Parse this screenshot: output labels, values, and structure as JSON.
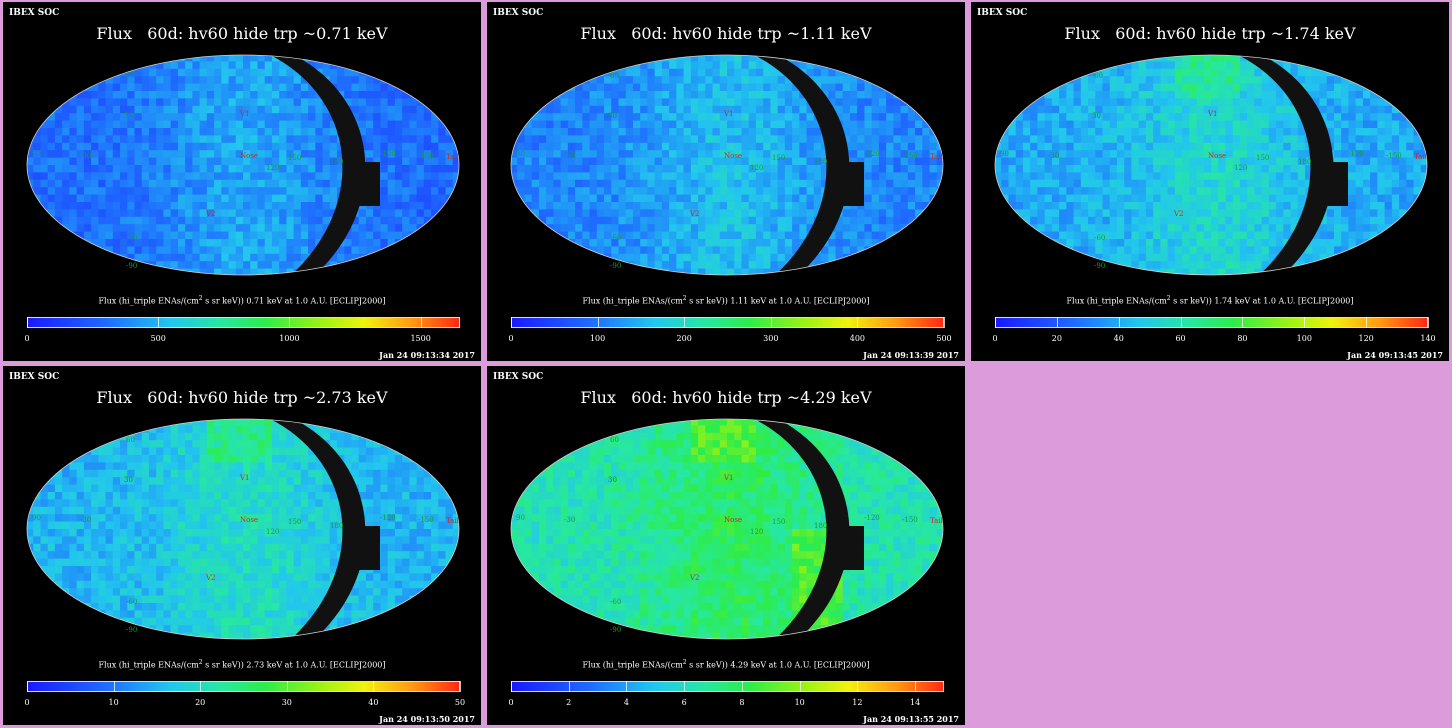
{
  "colors": {
    "page_background": "#dc9cdc",
    "panel_background": "#000000",
    "occulted_band": "#111111",
    "marker_label": "#cc2a1a",
    "grid_label": "#18a020"
  },
  "panels": [
    {
      "soc_label": "IBEX SOC",
      "title": "Flux   60d: hv60 hide trp ~0.71 keV",
      "colorbar_prefix": "Flux (hi_triple ENAs/(cm",
      "colorbar_sup": "2",
      "colorbar_suffix": " s sr keV))  0.71 keV at 1.0 A.U. [ECLIPJ2000]",
      "timestamp": "Jan 24 09:13:34 2017",
      "scale_max": 1650,
      "ticks": [
        "0",
        "500",
        "1000",
        "1500"
      ],
      "tick_values": [
        0,
        500,
        1000,
        1500
      ],
      "map_mean_level": 0.18,
      "map_labels": [
        "V1",
        "V2",
        "Nose",
        "Tail",
        "90",
        "60",
        "30",
        "-60",
        "-90",
        "-30",
        "120",
        "150",
        "180",
        "-150",
        "-120",
        "30"
      ]
    },
    {
      "soc_label": "IBEX SOC",
      "title": "Flux   60d: hv60 hide trp ~1.11 keV",
      "colorbar_prefix": "Flux (hi_triple ENAs/(cm",
      "colorbar_sup": "2",
      "colorbar_suffix": " s sr keV))  1.11 keV at 1.0 A.U. [ECLIPJ2000]",
      "timestamp": "Jan 24 09:13:39 2017",
      "scale_max": 500,
      "ticks": [
        "0",
        "100",
        "200",
        "300",
        "400",
        "500"
      ],
      "tick_values": [
        0,
        100,
        200,
        300,
        400,
        500
      ],
      "map_mean_level": 0.22,
      "map_labels": [
        "V1",
        "V2",
        "Nose",
        "Tail",
        "90",
        "60",
        "30",
        "-60",
        "-90",
        "-30",
        "120",
        "150",
        "180",
        "-150",
        "-120",
        "30"
      ]
    },
    {
      "soc_label": "IBEX SOC",
      "title": "Flux   60d: hv60 hide trp ~1.74 keV",
      "colorbar_prefix": "Flux (hi_triple ENAs/(cm",
      "colorbar_sup": "2",
      "colorbar_suffix": " s sr keV))  1.74 keV at 1.0 A.U. [ECLIPJ2000]",
      "timestamp": "Jan 24 09:13:45 2017",
      "scale_max": 140,
      "ticks": [
        "0",
        "20",
        "40",
        "60",
        "80",
        "100",
        "120",
        "140"
      ],
      "tick_values": [
        0,
        20,
        40,
        60,
        80,
        100,
        120,
        140
      ],
      "map_mean_level": 0.28,
      "map_labels": [
        "V1",
        "V2",
        "Nose",
        "Tail",
        "90",
        "60",
        "30",
        "-60",
        "-90",
        "-30",
        "120",
        "150",
        "180",
        "-150",
        "-120",
        "30"
      ]
    },
    {
      "soc_label": "IBEX SOC",
      "title": "Flux   60d: hv60 hide trp ~2.73 keV",
      "colorbar_prefix": "Flux (hi_triple ENAs/(cm",
      "colorbar_sup": "2",
      "colorbar_suffix": " s sr keV))  2.73 keV at 1.0 A.U. [ECLIPJ2000]",
      "timestamp": "Jan 24 09:13:50 2017",
      "scale_max": 50,
      "ticks": [
        "0",
        "10",
        "20",
        "30",
        "40",
        "50"
      ],
      "tick_values": [
        0,
        10,
        20,
        30,
        40,
        50
      ],
      "map_mean_level": 0.3,
      "map_labels": [
        "V1",
        "V2",
        "Nose",
        "Tail",
        "90",
        "60",
        "30",
        "-60",
        "-90",
        "-30",
        "120",
        "150",
        "180",
        "-150",
        "-120",
        "30"
      ]
    },
    {
      "soc_label": "IBEX SOC",
      "title": "Flux   60d: hv60 hide trp ~4.29 keV",
      "colorbar_prefix": "Flux (hi_triple ENAs/(cm",
      "colorbar_sup": "2",
      "colorbar_suffix": " s sr keV))  4.29 keV at 1.0 A.U. [ECLIPJ2000]",
      "timestamp": "Jan 24 09:13:55 2017",
      "scale_max": 15,
      "ticks": [
        "0",
        "2",
        "4",
        "6",
        "8",
        "10",
        "12",
        "14"
      ],
      "tick_values": [
        0,
        2,
        4,
        6,
        8,
        10,
        12,
        14
      ],
      "map_mean_level": 0.42,
      "map_labels": [
        "V1",
        "V2",
        "Nose",
        "Tail",
        "90",
        "60",
        "30",
        "-60",
        "-90",
        "-30",
        "120",
        "150",
        "180",
        "-150",
        "-120",
        "30"
      ]
    }
  ]
}
